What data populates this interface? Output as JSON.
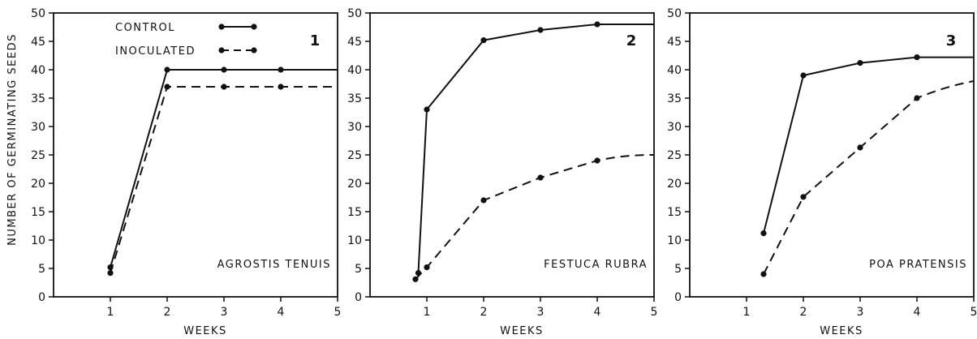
{
  "figure": {
    "ylabel": "NUMBER OF GERMINATING SEEDS",
    "legend": [
      {
        "name": "CONTROL",
        "style": "solid"
      },
      {
        "name": "INOCULATED",
        "style": "dashed"
      }
    ]
  },
  "chart_data": [
    {
      "type": "line",
      "panel_number": "1",
      "species": "AGROSTIS TENUIS",
      "xlabel": "WEEKS",
      "xlim": [
        0,
        5
      ],
      "ylim": [
        0,
        50
      ],
      "xticks": [
        1,
        2,
        3,
        4,
        5
      ],
      "yticks": [
        0,
        5,
        10,
        15,
        20,
        25,
        30,
        35,
        40,
        45,
        50
      ],
      "series": [
        {
          "name": "CONTROL",
          "style": "solid",
          "x": [
            1,
            2,
            3,
            4
          ],
          "y": [
            5.2,
            40,
            40,
            40
          ],
          "extend_to": 5
        },
        {
          "name": "INOCULATED",
          "style": "dashed",
          "x": [
            1,
            2,
            3,
            4
          ],
          "y": [
            4.2,
            37,
            37,
            37
          ],
          "extend_to": 5
        }
      ]
    },
    {
      "type": "line",
      "panel_number": "2",
      "species": "FESTUCA RUBRA",
      "xlabel": "WEEKS",
      "xlim": [
        0,
        5
      ],
      "ylim": [
        0,
        50
      ],
      "xticks": [
        1,
        2,
        3,
        4,
        5
      ],
      "yticks": [
        0,
        5,
        10,
        15,
        20,
        25,
        30,
        35,
        40,
        45,
        50
      ],
      "series": [
        {
          "name": "CONTROL",
          "style": "solid",
          "x": [
            0.85,
            1,
            2,
            3,
            4
          ],
          "y": [
            4.2,
            33,
            45.2,
            47,
            48
          ],
          "extend_to": 5,
          "end_y": 48
        },
        {
          "name": "INOCULATED",
          "style": "dashed",
          "x": [
            0.8,
            1,
            2,
            3,
            4
          ],
          "y": [
            3.1,
            5.2,
            17,
            21,
            24
          ],
          "extend_to": 5,
          "end_y": 25
        }
      ]
    },
    {
      "type": "line",
      "panel_number": "3",
      "species": "POA PRATENSIS",
      "xlabel": "WEEKS",
      "xlim": [
        0,
        5
      ],
      "ylim": [
        0,
        50
      ],
      "xticks": [
        1,
        2,
        3,
        4,
        5
      ],
      "yticks": [
        0,
        5,
        10,
        15,
        20,
        25,
        30,
        35,
        40,
        45,
        50
      ],
      "series": [
        {
          "name": "CONTROL",
          "style": "solid",
          "x": [
            1.3,
            2,
            3,
            4
          ],
          "y": [
            11.2,
            39,
            41.2,
            42.2
          ],
          "extend_to": 5,
          "end_y": 42.2
        },
        {
          "name": "INOCULATED",
          "style": "dashed",
          "x": [
            1.3,
            2,
            3,
            4
          ],
          "y": [
            4,
            17.6,
            26.3,
            35
          ],
          "extend_to": 5,
          "end_y": 38
        }
      ]
    }
  ]
}
